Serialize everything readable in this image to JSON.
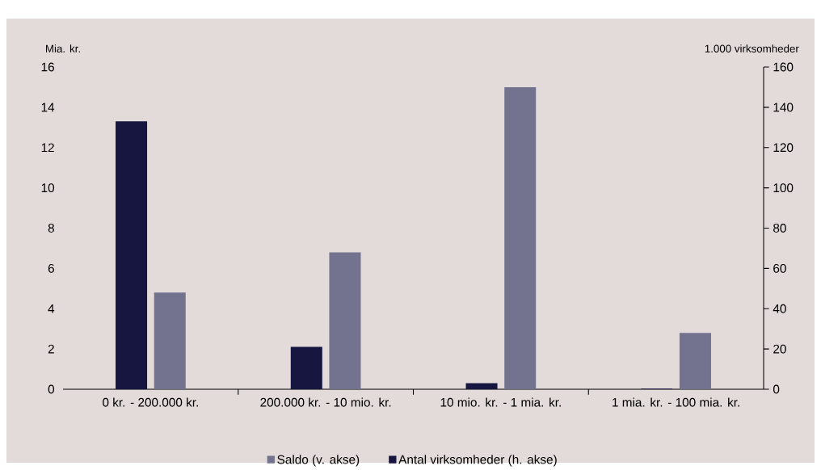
{
  "chart_data": {
    "type": "bar",
    "ylabel": "Mia. kr.",
    "y2label": "1.000 virksomheder",
    "categories": [
      "0 kr. - 200.000 kr.",
      "200.000 kr. - 10 mio. kr.",
      "10 mio. kr. - 1 mia. kr.",
      "1 mia. kr. - 100 mia. kr."
    ],
    "series": [
      {
        "name": "Saldo (v. akse)",
        "color": "#737390",
        "values": [
          4.8,
          6.8,
          15.0,
          2.8
        ]
      },
      {
        "name": "Antal virksomheder (h. akse)",
        "color": "#161640",
        "values": [
          133,
          21,
          3,
          0.3
        ],
        "axis": "y2"
      }
    ],
    "ylim": [
      0,
      16
    ],
    "yticks": [
      0,
      2,
      4,
      6,
      8,
      10,
      12,
      14,
      16
    ],
    "y2lim": [
      0,
      160
    ],
    "y2ticks": [
      0,
      20,
      40,
      60,
      80,
      100,
      120,
      140,
      160
    ],
    "legend": "bottom",
    "grid": false
  }
}
